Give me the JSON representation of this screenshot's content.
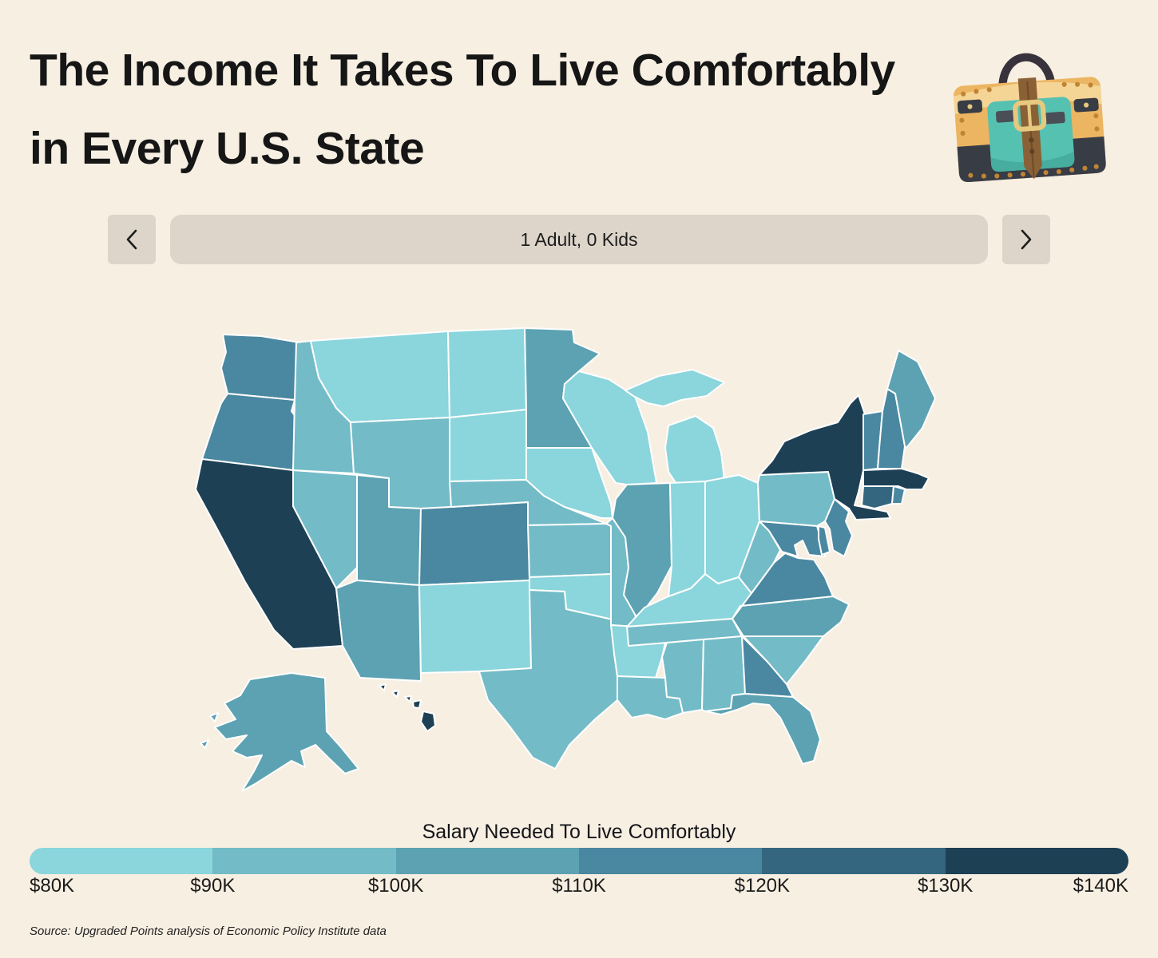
{
  "page": {
    "background_color": "#F7EFE2",
    "control_color": "#DDD5CA",
    "title_color": "#161616",
    "map_border_color": "#FFFFFF"
  },
  "header": {
    "title_line1": "The Income It Takes To Live Comfortably",
    "title_line2": "in Every U.S. State",
    "logo_icon": "handbag-icon"
  },
  "selector": {
    "label": "1 Adult, 0 Kids",
    "prev_icon": "chevron-left",
    "next_icon": "chevron-right"
  },
  "legend": {
    "title": "Salary Needed To Live Comfortably",
    "tick_labels": [
      "$80K",
      "$90K",
      "$100K",
      "$110K",
      "$120K",
      "$130K",
      "$140K"
    ]
  },
  "source": {
    "text": "Source: Upgraded Points analysis of Economic Policy Institute data"
  },
  "chart_data": {
    "type": "choropleth_map",
    "title": "Salary Needed To Live Comfortably",
    "household": "1 Adult, 0 Kids",
    "scale": {
      "min_label": "$80K",
      "max_label": "$140K",
      "bucket_ranges": [
        "$80K–$90K",
        "$90K–$100K",
        "$100K–$110K",
        "$110K–$120K",
        "$120K–$130K",
        "$130K–$140K"
      ],
      "bucket_colors": [
        "#8BD5DC",
        "#73BBC7",
        "#5CA2B2",
        "#4A87A0",
        "#34677F",
        "#1D4055"
      ]
    },
    "states": [
      {
        "id": "WA",
        "name": "Washington",
        "bucket": 4,
        "range": "$110K–$120K"
      },
      {
        "id": "OR",
        "name": "Oregon",
        "bucket": 4,
        "range": "$110K–$120K"
      },
      {
        "id": "CA",
        "name": "California",
        "bucket": 6,
        "range": "$130K–$140K"
      },
      {
        "id": "ID",
        "name": "Idaho",
        "bucket": 2,
        "range": "$90K–$100K"
      },
      {
        "id": "NV",
        "name": "Nevada",
        "bucket": 2,
        "range": "$90K–$100K"
      },
      {
        "id": "MT",
        "name": "Montana",
        "bucket": 1,
        "range": "$80K–$90K"
      },
      {
        "id": "WY",
        "name": "Wyoming",
        "bucket": 2,
        "range": "$90K–$100K"
      },
      {
        "id": "UT",
        "name": "Utah",
        "bucket": 3,
        "range": "$100K–$110K"
      },
      {
        "id": "AZ",
        "name": "Arizona",
        "bucket": 3,
        "range": "$100K–$110K"
      },
      {
        "id": "CO",
        "name": "Colorado",
        "bucket": 4,
        "range": "$110K–$120K"
      },
      {
        "id": "NM",
        "name": "New Mexico",
        "bucket": 1,
        "range": "$80K–$90K"
      },
      {
        "id": "ND",
        "name": "North Dakota",
        "bucket": 1,
        "range": "$80K–$90K"
      },
      {
        "id": "SD",
        "name": "South Dakota",
        "bucket": 1,
        "range": "$80K–$90K"
      },
      {
        "id": "NE",
        "name": "Nebraska",
        "bucket": 2,
        "range": "$90K–$100K"
      },
      {
        "id": "KS",
        "name": "Kansas",
        "bucket": 2,
        "range": "$90K–$100K"
      },
      {
        "id": "OK",
        "name": "Oklahoma",
        "bucket": 1,
        "range": "$80K–$90K"
      },
      {
        "id": "TX",
        "name": "Texas",
        "bucket": 2,
        "range": "$90K–$100K"
      },
      {
        "id": "MN",
        "name": "Minnesota",
        "bucket": 3,
        "range": "$100K–$110K"
      },
      {
        "id": "IA",
        "name": "Iowa",
        "bucket": 1,
        "range": "$80K–$90K"
      },
      {
        "id": "MO",
        "name": "Missouri",
        "bucket": 2,
        "range": "$90K–$100K"
      },
      {
        "id": "AR",
        "name": "Arkansas",
        "bucket": 1,
        "range": "$80K–$90K"
      },
      {
        "id": "LA",
        "name": "Louisiana",
        "bucket": 2,
        "range": "$90K–$100K"
      },
      {
        "id": "WI",
        "name": "Wisconsin",
        "bucket": 1,
        "range": "$80K–$90K"
      },
      {
        "id": "IL",
        "name": "Illinois",
        "bucket": 3,
        "range": "$100K–$110K"
      },
      {
        "id": "MI",
        "name": "Michigan",
        "bucket": 1,
        "range": "$80K–$90K"
      },
      {
        "id": "IN",
        "name": "Indiana",
        "bucket": 1,
        "range": "$80K–$90K"
      },
      {
        "id": "OH",
        "name": "Ohio",
        "bucket": 1,
        "range": "$80K–$90K"
      },
      {
        "id": "KY",
        "name": "Kentucky",
        "bucket": 1,
        "range": "$80K–$90K"
      },
      {
        "id": "TN",
        "name": "Tennessee",
        "bucket": 2,
        "range": "$90K–$100K"
      },
      {
        "id": "MS",
        "name": "Mississippi",
        "bucket": 2,
        "range": "$90K–$100K"
      },
      {
        "id": "AL",
        "name": "Alabama",
        "bucket": 2,
        "range": "$90K–$100K"
      },
      {
        "id": "GA",
        "name": "Georgia",
        "bucket": 4,
        "range": "$110K–$120K"
      },
      {
        "id": "FL",
        "name": "Florida",
        "bucket": 3,
        "range": "$100K–$110K"
      },
      {
        "id": "SC",
        "name": "South Carolina",
        "bucket": 2,
        "range": "$90K–$100K"
      },
      {
        "id": "NC",
        "name": "North Carolina",
        "bucket": 3,
        "range": "$100K–$110K"
      },
      {
        "id": "VA",
        "name": "Virginia",
        "bucket": 4,
        "range": "$110K–$120K"
      },
      {
        "id": "WV",
        "name": "West Virginia",
        "bucket": 2,
        "range": "$90K–$100K"
      },
      {
        "id": "PA",
        "name": "Pennsylvania",
        "bucket": 2,
        "range": "$90K–$100K"
      },
      {
        "id": "NY",
        "name": "New York",
        "bucket": 6,
        "range": "$130K–$140K"
      },
      {
        "id": "NJ",
        "name": "New Jersey",
        "bucket": 4,
        "range": "$110K–$120K"
      },
      {
        "id": "MD",
        "name": "Maryland",
        "bucket": 4,
        "range": "$110K–$120K"
      },
      {
        "id": "DE",
        "name": "Delaware",
        "bucket": 4,
        "range": "$110K–$120K"
      },
      {
        "id": "VT",
        "name": "Vermont",
        "bucket": 4,
        "range": "$110K–$120K"
      },
      {
        "id": "NH",
        "name": "New Hampshire",
        "bucket": 4,
        "range": "$110K–$120K"
      },
      {
        "id": "ME",
        "name": "Maine",
        "bucket": 3,
        "range": "$100K–$110K"
      },
      {
        "id": "MA",
        "name": "Massachusetts",
        "bucket": 6,
        "range": "$130K–$140K"
      },
      {
        "id": "CT",
        "name": "Connecticut",
        "bucket": 5,
        "range": "$120K–$130K"
      },
      {
        "id": "RI",
        "name": "Rhode Island",
        "bucket": 4,
        "range": "$110K–$120K"
      },
      {
        "id": "AK",
        "name": "Alaska",
        "bucket": 3,
        "range": "$100K–$110K"
      },
      {
        "id": "HI",
        "name": "Hawaii",
        "bucket": 6,
        "range": "$130K–$140K"
      }
    ]
  }
}
